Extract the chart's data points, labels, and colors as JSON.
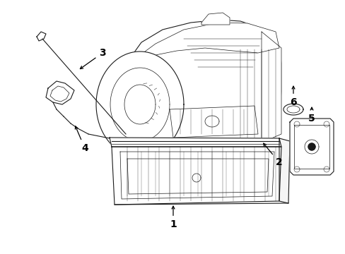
{
  "background_color": "#ffffff",
  "line_color": "#1a1a1a",
  "label_color": "#000000",
  "label_fontsize": 10,
  "figsize": [
    4.89,
    3.6
  ],
  "dpi": 100
}
